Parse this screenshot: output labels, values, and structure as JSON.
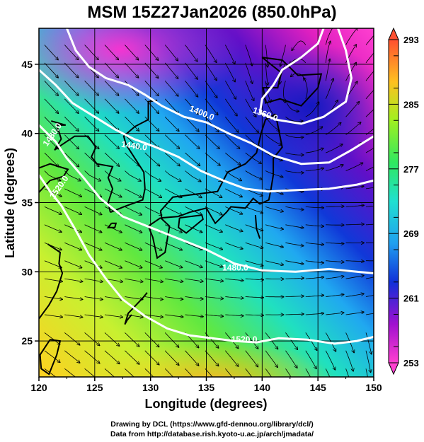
{
  "title": "MSM 15Z27Jan2026 (850.0hPa)",
  "xlabel": "Longitude (degrees)",
  "ylabel": "Latitude  (degrees)",
  "x_ticks": [
    "120",
    "125",
    "130",
    "135",
    "140",
    "145",
    "150"
  ],
  "y_ticks": [
    "25",
    "30",
    "35",
    "40",
    "45"
  ],
  "extent": {
    "lon": [
      120,
      150
    ],
    "lat": [
      22.4,
      47.6
    ]
  },
  "colorbar": {
    "tick_labels": [
      "293",
      "285",
      "277",
      "269",
      "261",
      "253"
    ],
    "range": [
      253,
      293
    ]
  },
  "contour_labels": [
    {
      "text": "1360.0",
      "lon": 140.2,
      "lat": 41.2,
      "angle": 20
    },
    {
      "text": "1400.0",
      "lon": 134.5,
      "lat": 41.3,
      "angle": 22
    },
    {
      "text": "1440.0",
      "lon": 128.5,
      "lat": 38.9,
      "angle": 8
    },
    {
      "text": "1480.0",
      "lon": 121.4,
      "lat": 39.8,
      "angle": -55
    },
    {
      "text": "1520.0",
      "lon": 122.0,
      "lat": 36.0,
      "angle": -55
    },
    {
      "text": "1480.0",
      "lon": 137.6,
      "lat": 30.1,
      "angle": 0
    },
    {
      "text": "1520.0",
      "lon": 138.4,
      "lat": 24.9,
      "angle": 0
    }
  ],
  "credits": {
    "line1": "Drawing by DCL (https://www.gfd-dennou.org/library/dcl/)",
    "line2": "Data from http://database.rish.kyoto-u.ac.jp/arch/jmadata/"
  },
  "colors": {
    "cold": "#ff33cc",
    "cool": "#1030d0",
    "mid": "#20e0d0",
    "warm": "#80f020",
    "hot": "#ffd020",
    "contour": "#ffffff",
    "streamline": "#000000"
  }
}
